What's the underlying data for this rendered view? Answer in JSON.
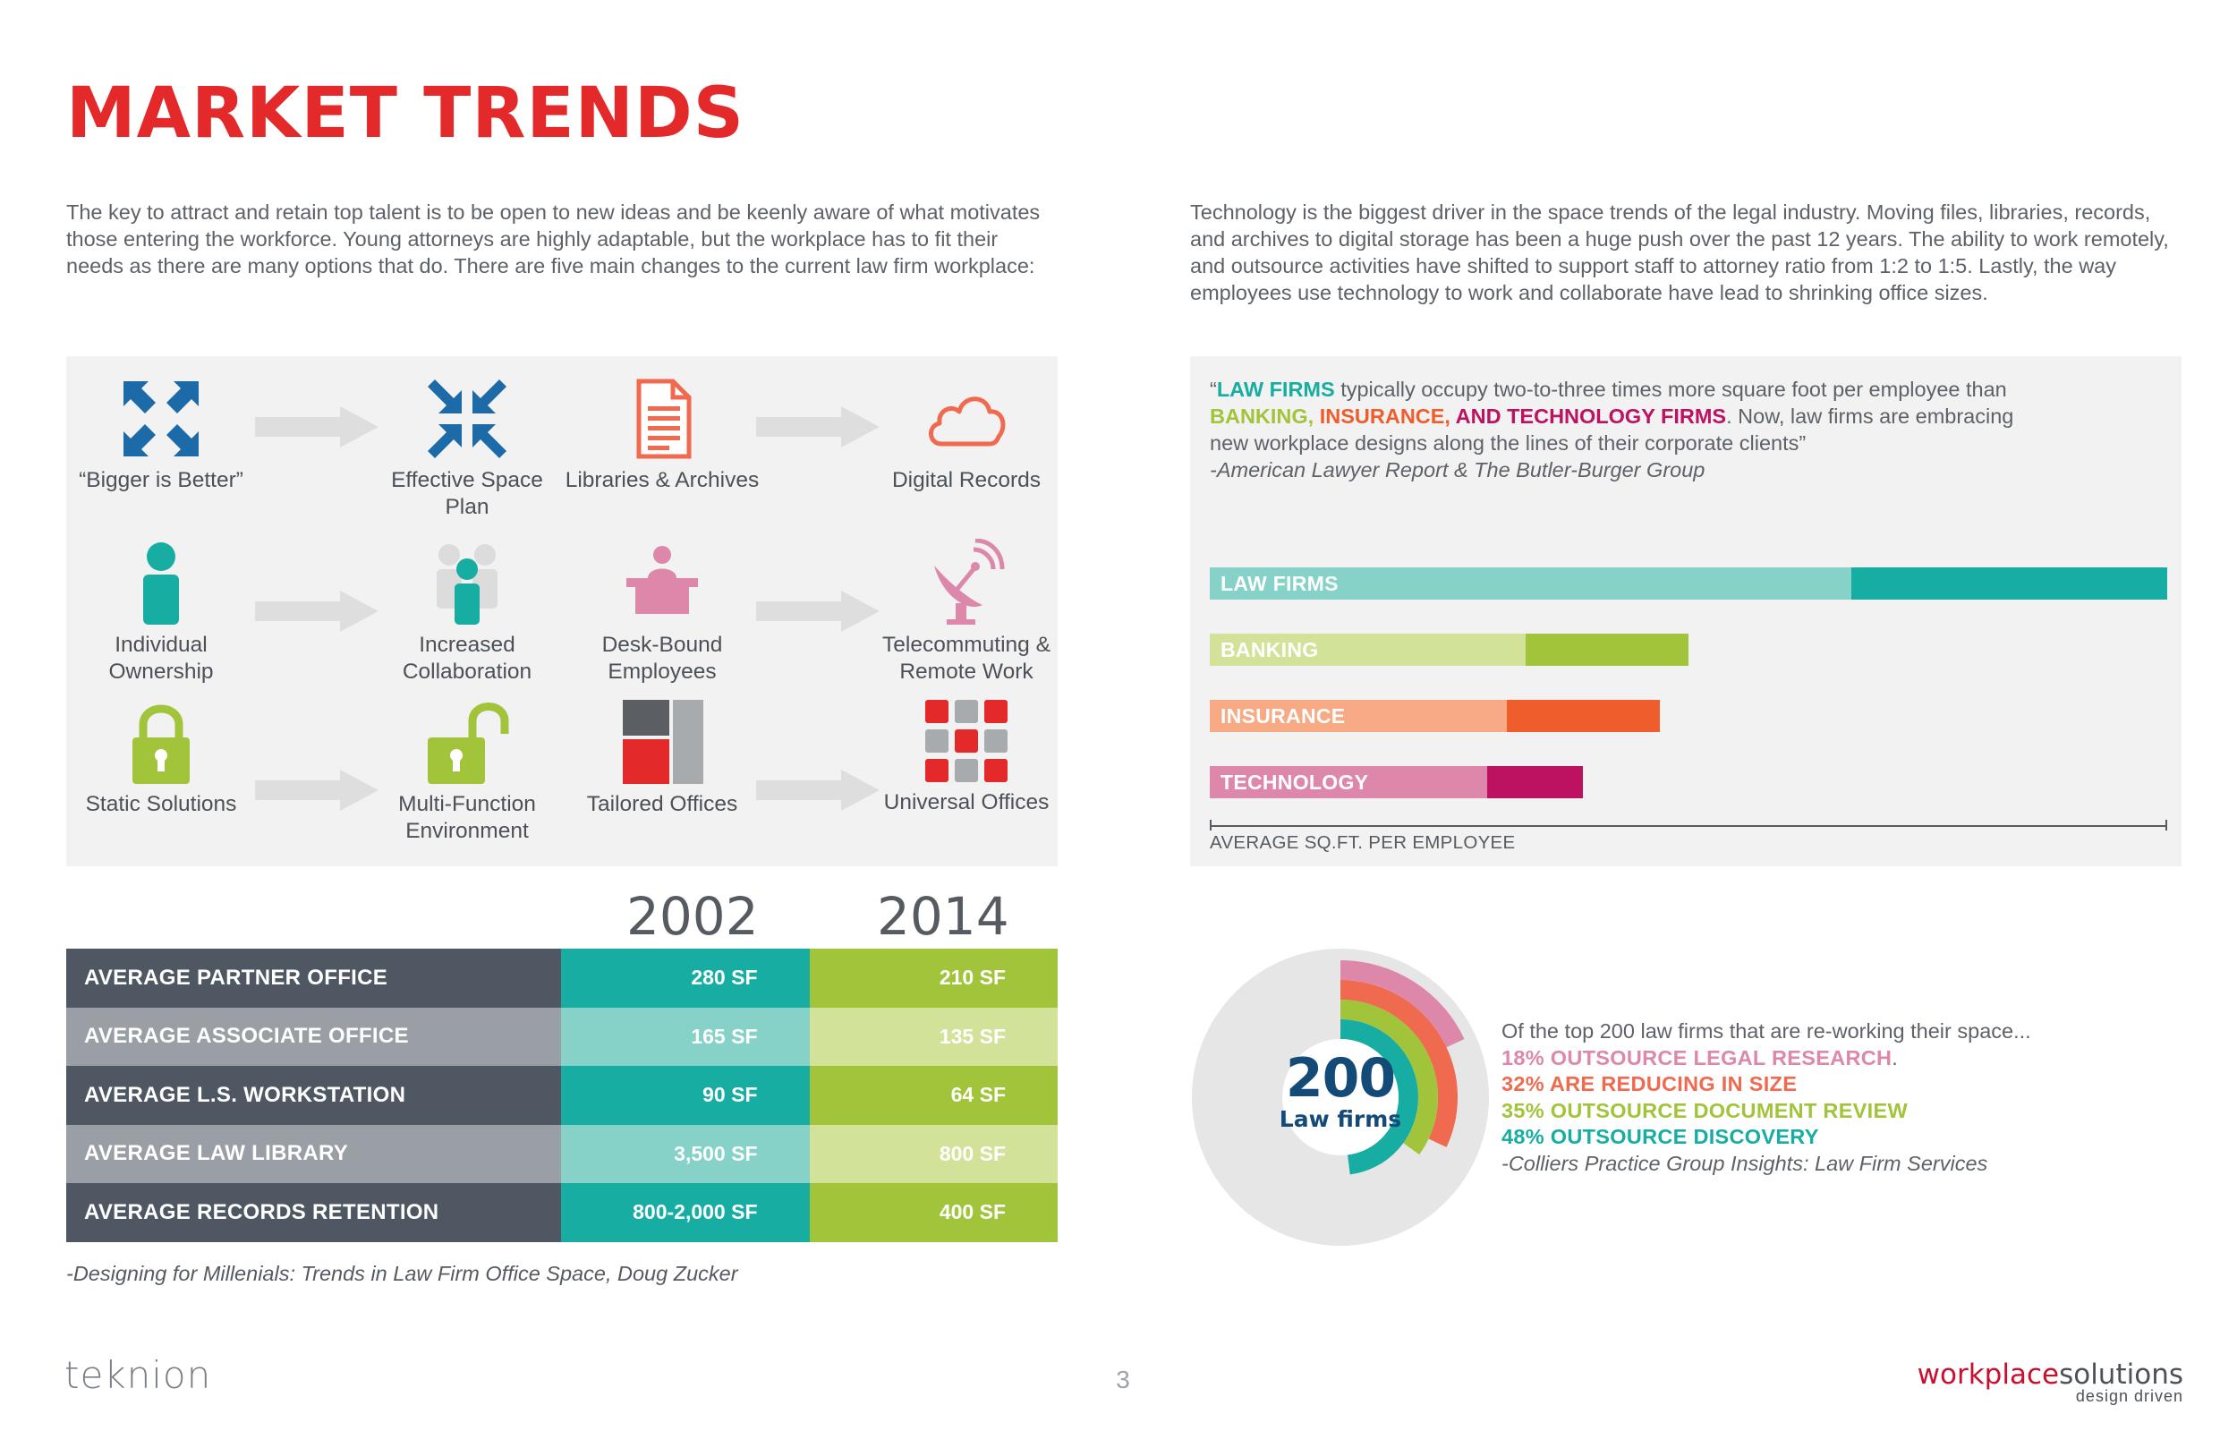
{
  "title": "MARKET TRENDS",
  "intro_left": "The key to attract and retain top talent is to be open to new ideas and be keenly aware of what motivates those entering the workforce. Young attorneys are highly adaptable, but the workplace has to fit their needs as there are many options that do. There are five main changes to the current law firm workplace:",
  "intro_right": "Technology is the biggest driver in the space trends of the legal industry. Moving files, libraries, records, and archives to digital storage has been a huge push over the past 12 years. The ability to work remotely, and outsource activities have shifted to support staff to attorney ratio from 1:2 to 1:5. Lastly, the way employees use technology to work and collaborate have lead to shrinking office sizes.",
  "transitions": [
    {
      "from_label": "“Bigger is Better”",
      "from_icon": "arrows-inward-icon",
      "to_label": "Effective Space Plan",
      "to_icon": "arrows-compress-icon"
    },
    {
      "from_label": "Libraries & Archives",
      "from_icon": "document-icon",
      "to_label": "Digital Records",
      "to_icon": "cloud-icon"
    },
    {
      "from_label": "Individual Ownership",
      "from_icon": "person-icon",
      "to_label": "Increased Collaboration",
      "to_icon": "group-icon"
    },
    {
      "from_label": "Desk-Bound Employees",
      "from_icon": "desk-person-icon",
      "to_label": "Telecommuting & Remote Work",
      "to_icon": "satellite-dish-icon"
    },
    {
      "from_label": "Static Solutions",
      "from_icon": "lock-closed-icon",
      "to_label": "Multi-Function Environment",
      "to_icon": "lock-open-icon"
    },
    {
      "from_label": "Tailored Offices",
      "from_icon": "tailored-blocks-icon",
      "to_label": "Universal Offices",
      "to_icon": "grid-blocks-icon"
    }
  ],
  "table": {
    "year_1": "2002",
    "year_2": "2014",
    "rows": [
      {
        "label": "AVERAGE PARTNER OFFICE",
        "v2002": "280 SF",
        "v2014": "210 SF"
      },
      {
        "label": "AVERAGE ASSOCIATE OFFICE",
        "v2002": "165 SF",
        "v2014": "135 SF"
      },
      {
        "label": "AVERAGE L.S. WORKSTATION",
        "v2002": "90 SF",
        "v2014": "64 SF"
      },
      {
        "label": "AVERAGE LAW LIBRARY",
        "v2002": "3,500 SF",
        "v2014": "800 SF"
      },
      {
        "label": "AVERAGE RECORDS RETENTION",
        "v2002": "800-2,000 SF",
        "v2014": "400 SF"
      }
    ],
    "source": "-Designing for Millenials: Trends in Law Firm Office Space, Doug Zucker"
  },
  "quote": {
    "open": "“",
    "law_firms": "LAW FIRMS",
    "text_1": " typically occupy two-to-three times more square foot per employee than ",
    "banking": "BANKING,",
    "insurance": " INSURANCE,",
    "tech": " AND TECHNOLOGY FIRMS",
    "text_2": ". Now, law firms are embracing new workplace designs along the lines of their corporate clients”",
    "attribution": "-American Lawyer Report & The Butler-Burger Group"
  },
  "chart_data": {
    "type": "bar",
    "orientation": "horizontal",
    "title": "",
    "xlabel": "AVERAGE SQ.FT. PER EMPLOYEE",
    "categories": [
      "LAW FIRMS",
      "BANKING",
      "INSURANCE",
      "TECHNOLOGY"
    ],
    "values": [
      100,
      50,
      47,
      39
    ],
    "inner_segment_values": [
      67,
      33,
      31,
      29
    ],
    "xlim": [
      0,
      100
    ],
    "colors_light": [
      "#86d1c8",
      "#d2e299",
      "#f7aa83",
      "#dd88aa"
    ],
    "colors_dark": [
      "#17ada3",
      "#a2c43a",
      "#ef5d2c",
      "#bd1162"
    ]
  },
  "donut": {
    "number": "200",
    "sub": "Law firms",
    "rings": [
      {
        "percent": 48,
        "color": "#17ada3"
      },
      {
        "percent": 35,
        "color": "#a2c43a"
      },
      {
        "percent": 32,
        "color": "#ef6a4f"
      },
      {
        "percent": 18,
        "color": "#dd88aa"
      }
    ]
  },
  "stats": {
    "intro": "Of the top 200 law firms that are re-working their space...",
    "items": [
      {
        "text": "18% OUTSOURCE LEGAL RESEARCH",
        "suffix": ".",
        "color": "#dd88aa"
      },
      {
        "text": "32% ARE REDUCING IN SIZE",
        "suffix": "",
        "color": "#ef6a4f"
      },
      {
        "text": "35% OUTSOURCE DOCUMENT REVIEW",
        "suffix": "",
        "color": "#a2c43a"
      },
      {
        "text": "48% OUTSOURCE DISCOVERY",
        "suffix": "",
        "color": "#17ada3"
      }
    ],
    "source": "-Colliers Practice Group Insights: Law Firm Services"
  },
  "footer": {
    "brand_left": "teknion",
    "page_number": "3",
    "brand_right_1": "workplace",
    "brand_right_2": "solutions",
    "tagline": "design driven"
  }
}
